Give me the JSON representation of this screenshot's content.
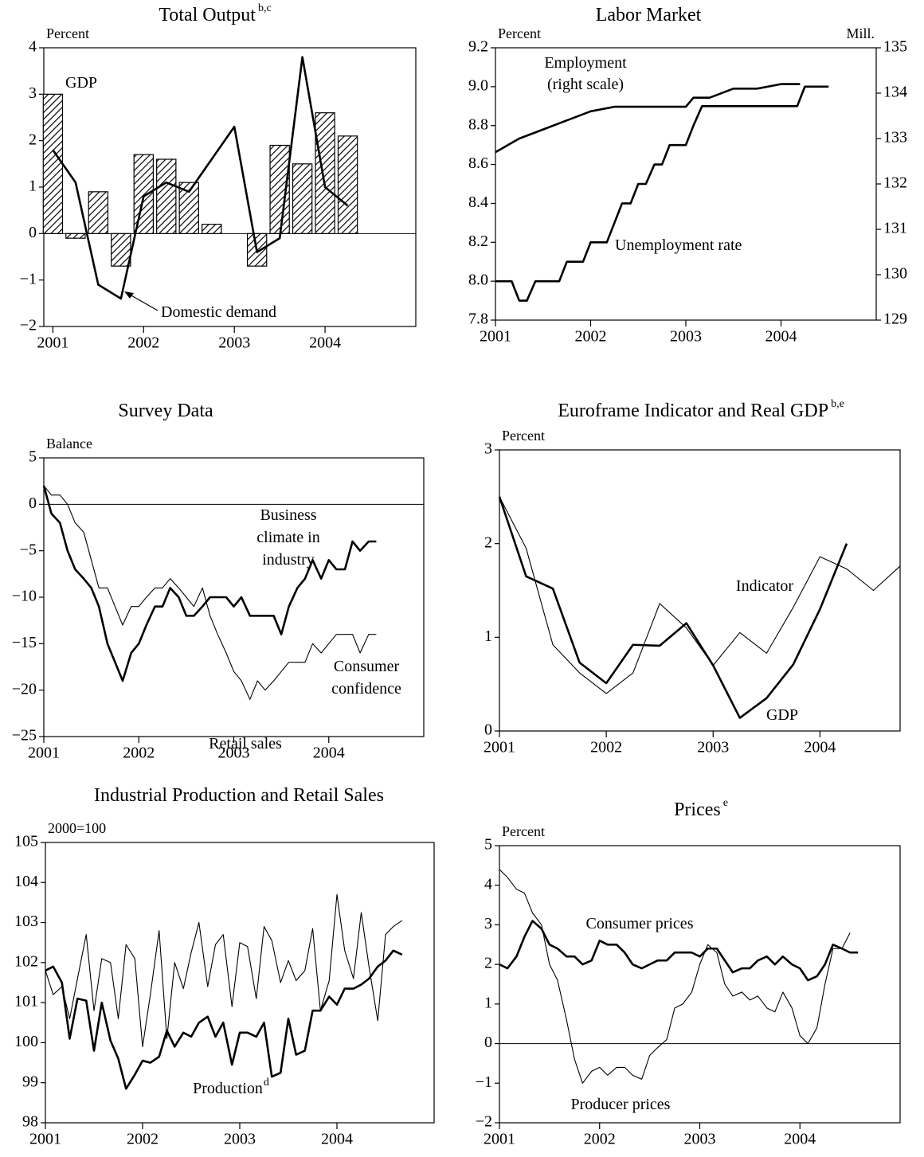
{
  "chart_data": [
    {
      "type": "bar",
      "title": "Total Output",
      "title_superscript": "b,c",
      "y_unit": "Percent",
      "x": [
        2001,
        2001.25,
        2001.5,
        2001.75,
        2002,
        2002.25,
        2002.5,
        2002.75,
        2003,
        2003.25,
        2003.5,
        2003.75,
        2004,
        2004.25
      ],
      "xlim": [
        2000.9,
        2005
      ],
      "xticks": [
        2001,
        2002,
        2003,
        2004
      ],
      "ylim": [
        -2,
        4
      ],
      "yticks": [
        {
          "value": -2,
          "label": "−2"
        },
        {
          "value": -1,
          "label": "−1"
        },
        0,
        1,
        2,
        3,
        4
      ],
      "zero_line": true,
      "series": [
        {
          "type": "bar",
          "color": "#000000",
          "values": [
            3.0,
            -0.1,
            0.9,
            -0.7,
            1.7,
            1.6,
            1.1,
            0.2,
            0,
            -0.7,
            1.9,
            1.5,
            2.6,
            2.1
          ]
        },
        {
          "type": "line",
          "style": "thick",
          "color": "#000000",
          "values": [
            1.8,
            1.1,
            -1.1,
            -1.4,
            0.8,
            1.1,
            0.9,
            1.6,
            2.3,
            -0.4,
            -0.1,
            3.8,
            1.0,
            0.6
          ]
        }
      ],
      "annotations": [
        {
          "text": "GDP"
        },
        {
          "text": "Domestic demand"
        }
      ]
    },
    {
      "type": "line",
      "title": "Labor Market",
      "y_unit": "Percent",
      "y2_unit": "Mill.",
      "xlim": [
        2001,
        2005
      ],
      "xticks": [
        2001,
        2002,
        2003,
        2004
      ],
      "ylim": [
        7.8,
        9.2
      ],
      "yticks": [
        7.8,
        {
          "value": 8,
          "label": "8.0"
        },
        8.2,
        8.4,
        8.6,
        8.8,
        {
          "value": 9,
          "label": "9.0"
        },
        9.2
      ],
      "y2lim": [
        129,
        135
      ],
      "y2ticks": [
        129,
        130,
        131,
        132,
        133,
        134,
        135
      ],
      "series": [
        {
          "type": "line",
          "style": "thick",
          "color": "#000000",
          "axis": "y2",
          "x": [
            2001,
            2001.25,
            2001.5,
            2001.75,
            2002,
            2002.25,
            2002.5,
            2002.75,
            2003,
            2003.08,
            2003.25,
            2003.5,
            2003.75,
            2004,
            2004.2
          ],
          "values": [
            132.7,
            133.0,
            133.2,
            133.4,
            133.6,
            133.7,
            133.7,
            133.7,
            133.7,
            133.9,
            133.9,
            134.1,
            134.1,
            134.2,
            134.2
          ]
        },
        {
          "type": "line",
          "style": "thick",
          "color": "#000000",
          "x": [
            2001,
            2001.08,
            2001.17,
            2001.25,
            2001.33,
            2001.42,
            2001.5,
            2001.58,
            2001.67,
            2001.75,
            2001.83,
            2001.92,
            2002,
            2002.08,
            2002.17,
            2002.25,
            2002.33,
            2002.42,
            2002.5,
            2002.58,
            2002.67,
            2002.75,
            2002.83,
            2002.92,
            2003,
            2003.08,
            2003.17,
            2003.25,
            2003.33,
            2003.42,
            2003.5,
            2003.58,
            2003.67,
            2003.75,
            2003.83,
            2003.92,
            2004,
            2004.08,
            2004.17,
            2004.25,
            2004.33,
            2004.42,
            2004.5
          ],
          "values": [
            8.0,
            8.0,
            8.0,
            7.9,
            7.9,
            8.0,
            8.0,
            8.0,
            8.0,
            8.1,
            8.1,
            8.1,
            8.2,
            8.2,
            8.2,
            8.3,
            8.4,
            8.4,
            8.5,
            8.5,
            8.6,
            8.6,
            8.7,
            8.7,
            8.7,
            8.8,
            8.9,
            8.9,
            8.9,
            8.9,
            8.9,
            8.9,
            8.9,
            8.9,
            8.9,
            8.9,
            8.9,
            8.9,
            8.9,
            9.0,
            9.0,
            9.0,
            9.0
          ]
        }
      ],
      "annotations": [
        {
          "text": "Employment"
        },
        {
          "text": "(right scale)"
        },
        {
          "text": "Unemployment rate"
        }
      ]
    },
    {
      "type": "line",
      "title": "Survey Data",
      "y_unit": "Balance",
      "x": [
        2001,
        2001.08,
        2001.17,
        2001.25,
        2001.33,
        2001.42,
        2001.5,
        2001.58,
        2001.67,
        2001.75,
        2001.83,
        2001.92,
        2002,
        2002.08,
        2002.17,
        2002.25,
        2002.33,
        2002.42,
        2002.5,
        2002.58,
        2002.67,
        2002.75,
        2002.83,
        2002.92,
        2003,
        2003.08,
        2003.17,
        2003.25,
        2003.33,
        2003.42,
        2003.5,
        2003.58,
        2003.67,
        2003.75,
        2003.83,
        2003.92,
        2004,
        2004.08,
        2004.17,
        2004.25,
        2004.33,
        2004.42,
        2004.5
      ],
      "xlim": [
        2001,
        2005
      ],
      "xticks": [
        2001,
        2002,
        2003,
        2004
      ],
      "ylim": [
        -25,
        5
      ],
      "yticks": [
        {
          "value": -25,
          "label": "−25"
        },
        {
          "value": -20,
          "label": "−20"
        },
        {
          "value": -15,
          "label": "−15"
        },
        {
          "value": -10,
          "label": "−10"
        },
        {
          "value": -5,
          "label": "−5"
        },
        0,
        5
      ],
      "zero_line": true,
      "series": [
        {
          "type": "line",
          "style": "thick",
          "color": "#000000",
          "values": [
            2,
            -1,
            -2,
            -5,
            -7,
            -8,
            -9,
            -11,
            -15,
            -17,
            -19,
            -16,
            -15,
            -13,
            -11,
            -11,
            -9,
            -10,
            -12,
            -12,
            -11,
            -10,
            -10,
            -10,
            -11,
            -10,
            -12,
            -12,
            -12,
            -12,
            -14,
            -11,
            -9,
            -8,
            -6,
            -8,
            -6,
            -7,
            -7,
            -4,
            -5,
            -4,
            -4
          ]
        },
        {
          "type": "line",
          "style": "thin",
          "color": "#000000",
          "values": [
            2,
            1,
            1,
            0,
            -2,
            -3,
            -6,
            -9,
            -9,
            -11,
            -13,
            -11,
            -11,
            -10,
            -9,
            -9,
            -8,
            -9,
            -10,
            -11,
            -9,
            -12,
            -14,
            -16,
            -18,
            -19,
            -21,
            -19,
            -20,
            -19,
            -18,
            -17,
            -17,
            -17,
            -15,
            -16,
            -15,
            -14,
            -14,
            -14,
            -16,
            -14,
            -14
          ]
        }
      ],
      "annotations": [
        {
          "text": "Business"
        },
        {
          "text": "climate in"
        },
        {
          "text": "industry"
        },
        {
          "text": "Consumer"
        },
        {
          "text": "confidence"
        }
      ]
    },
    {
      "type": "line",
      "title": "Euroframe Indicator and Real GDP",
      "title_superscript": "b,e",
      "y_unit": "Percent",
      "x": [
        2001,
        2001.25,
        2001.5,
        2001.75,
        2002,
        2002.25,
        2002.5,
        2002.75,
        2003,
        2003.25,
        2003.5,
        2003.75,
        2004,
        2004.25,
        2004.5,
        2004.75
      ],
      "xlim": [
        2001,
        2004.75
      ],
      "xticks": [
        2001,
        2002,
        2003,
        2004
      ],
      "ylim": [
        0,
        3
      ],
      "yticks": [
        0,
        1,
        2,
        3
      ],
      "series": [
        {
          "type": "line",
          "style": "thick",
          "color": "#000000",
          "values": [
            2.5,
            1.65,
            1.52,
            0.73,
            0.51,
            0.92,
            0.91,
            1.15,
            0.7,
            0.14,
            0.35,
            0.71,
            1.3,
            2.0,
            null,
            null
          ]
        },
        {
          "type": "line",
          "style": "thin",
          "color": "#000000",
          "values": [
            2.5,
            1.95,
            0.92,
            0.62,
            0.4,
            0.62,
            1.36,
            1.1,
            0.7,
            1.05,
            0.83,
            1.32,
            1.86,
            1.73,
            1.5,
            1.76
          ]
        }
      ],
      "annotations": [
        {
          "text": "Indicator"
        },
        {
          "text": "GDP"
        }
      ]
    },
    {
      "type": "line",
      "title": "Industrial Production and Retail Sales",
      "y_unit": "2000=100",
      "x": [
        2001,
        2001.08,
        2001.17,
        2001.25,
        2001.33,
        2001.42,
        2001.5,
        2001.58,
        2001.67,
        2001.75,
        2001.83,
        2001.92,
        2002,
        2002.08,
        2002.17,
        2002.25,
        2002.33,
        2002.42,
        2002.5,
        2002.58,
        2002.67,
        2002.75,
        2002.83,
        2002.92,
        2003,
        2003.08,
        2003.17,
        2003.25,
        2003.33,
        2003.42,
        2003.5,
        2003.58,
        2003.67,
        2003.75,
        2003.83,
        2003.92,
        2004,
        2004.08,
        2004.17,
        2004.25,
        2004.33,
        2004.42,
        2004.5,
        2004.58,
        2004.67
      ],
      "xlim": [
        2001,
        2005
      ],
      "xticks": [
        2001,
        2002,
        2003,
        2004
      ],
      "ylim": [
        98,
        105
      ],
      "yticks": [
        98,
        99,
        100,
        101,
        102,
        103,
        104,
        105
      ],
      "series": [
        {
          "type": "line",
          "style": "thick",
          "color": "#000000",
          "values": [
            101.8,
            101.9,
            101.5,
            100.1,
            101.1,
            101.05,
            99.8,
            101.0,
            100.05,
            99.6,
            98.85,
            99.2,
            99.55,
            99.5,
            99.65,
            100.3,
            99.9,
            100.25,
            100.15,
            100.5,
            100.65,
            100.15,
            100.5,
            99.45,
            100.25,
            100.25,
            100.15,
            100.5,
            99.15,
            99.25,
            100.6,
            99.7,
            99.8,
            100.8,
            100.8,
            101.15,
            100.95,
            101.35,
            101.35,
            101.45,
            101.6,
            101.9,
            102.05,
            102.3,
            102.2
          ]
        },
        {
          "type": "line",
          "style": "thin",
          "color": "#000000",
          "values": [
            101.8,
            101.2,
            101.4,
            100.6,
            101.6,
            102.7,
            100.8,
            102.1,
            102.0,
            100.6,
            102.45,
            102.1,
            99.9,
            101.2,
            102.8,
            100.1,
            102.0,
            101.35,
            102.25,
            103.0,
            101.4,
            102.45,
            102.7,
            100.9,
            102.5,
            102.4,
            101.1,
            102.9,
            102.55,
            101.5,
            102.05,
            101.55,
            101.8,
            102.85,
            100.8,
            101.55,
            103.7,
            102.3,
            101.6,
            103.25,
            101.9,
            100.55,
            102.7,
            102.9,
            103.05
          ]
        }
      ],
      "annotations": [
        {
          "text": "Retail sales"
        },
        {
          "text": "Production",
          "superscript": "d"
        }
      ]
    },
    {
      "type": "line",
      "title": "Prices",
      "title_superscript": "e",
      "y_unit": "Percent",
      "x": [
        2001,
        2001.08,
        2001.17,
        2001.25,
        2001.33,
        2001.42,
        2001.5,
        2001.58,
        2001.67,
        2001.75,
        2001.83,
        2001.92,
        2002,
        2002.08,
        2002.17,
        2002.25,
        2002.33,
        2002.42,
        2002.5,
        2002.58,
        2002.67,
        2002.75,
        2002.83,
        2002.92,
        2003,
        2003.08,
        2003.17,
        2003.25,
        2003.33,
        2003.42,
        2003.5,
        2003.58,
        2003.67,
        2003.75,
        2003.83,
        2003.92,
        2004,
        2004.08,
        2004.17,
        2004.25,
        2004.33,
        2004.42,
        2004.5,
        2004.58
      ],
      "xlim": [
        2001,
        2005
      ],
      "xticks": [
        2001,
        2002,
        2003,
        2004
      ],
      "ylim": [
        -2,
        5
      ],
      "yticks": [
        {
          "value": -2,
          "label": "−2"
        },
        {
          "value": -1,
          "label": "−1"
        },
        0,
        1,
        2,
        3,
        4,
        5
      ],
      "zero_line": true,
      "series": [
        {
          "type": "line",
          "style": "thick",
          "color": "#000000",
          "values": [
            2.0,
            1.9,
            2.2,
            2.7,
            3.1,
            2.9,
            2.5,
            2.4,
            2.2,
            2.2,
            2.0,
            2.1,
            2.6,
            2.5,
            2.5,
            2.3,
            2.0,
            1.9,
            2.0,
            2.1,
            2.1,
            2.3,
            2.3,
            2.3,
            2.2,
            2.4,
            2.4,
            2.1,
            1.8,
            1.9,
            1.9,
            2.1,
            2.2,
            2.0,
            2.2,
            2.0,
            1.9,
            1.6,
            1.7,
            2.0,
            2.5,
            2.4,
            2.3,
            2.3
          ]
        },
        {
          "type": "line",
          "style": "thin",
          "color": "#000000",
          "values": [
            4.4,
            4.2,
            3.9,
            3.8,
            3.3,
            3.0,
            2.0,
            1.6,
            0.6,
            -0.4,
            -1.0,
            -0.7,
            -0.6,
            -0.8,
            -0.6,
            -0.6,
            -0.8,
            -0.9,
            -0.3,
            -0.1,
            0.1,
            0.9,
            1.0,
            1.3,
            2.0,
            2.5,
            2.3,
            1.5,
            1.2,
            1.3,
            1.1,
            1.2,
            0.9,
            0.8,
            1.3,
            0.9,
            0.2,
            0.0,
            0.4,
            1.5,
            2.4,
            2.4,
            2.8,
            null
          ]
        }
      ],
      "annotations": [
        {
          "text": "Consumer prices"
        },
        {
          "text": "Producer prices"
        }
      ]
    }
  ]
}
